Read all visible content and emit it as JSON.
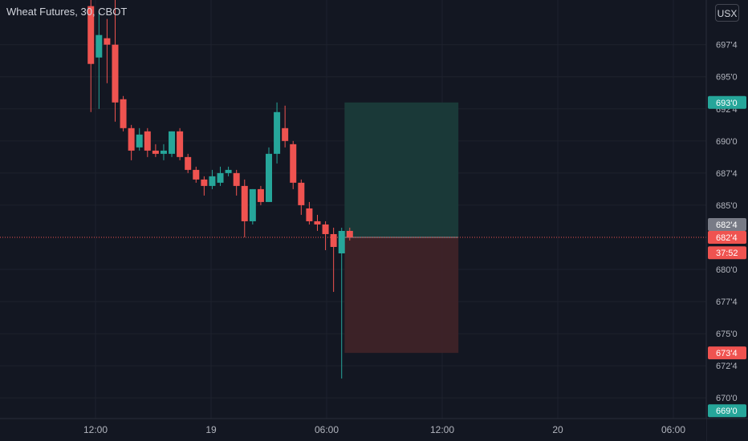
{
  "header": {
    "symbol_title": "Wheat Futures, 30, CBOT",
    "currency_label": "USX"
  },
  "colors": {
    "background": "#131722",
    "grid": "#1e222d",
    "text": "#b2b5be",
    "up": "#26a69a",
    "down": "#ef5350",
    "profit_zone": "#1a3b3a",
    "loss_zone": "#3e2328",
    "price_line": "#ef5350",
    "gray_tag": "#787b86"
  },
  "chart_data": {
    "type": "candlestick",
    "y_axis": {
      "tick_labels": [
        "697'4",
        "695'0",
        "692'4",
        "690'0",
        "687'4",
        "685'0",
        "680'0",
        "677'4",
        "675'0",
        "672'4",
        "670'0"
      ],
      "tick_values": [
        697.5,
        695.0,
        692.5,
        690.0,
        687.5,
        685.0,
        680.0,
        677.5,
        675.0,
        672.5,
        670.0
      ],
      "range": [
        668.8,
        701.0
      ]
    },
    "x_axis": {
      "tick_labels": [
        "12:00",
        "19",
        "06:00",
        "12:00",
        "20",
        "06:00"
      ],
      "bar_index": [
        0,
        10,
        20,
        30,
        40,
        50
      ]
    },
    "candles": [
      {
        "i": -0.4,
        "o": 700.5,
        "h": 701.5,
        "l": 692.25,
        "c": 696.0
      },
      {
        "i": 0.3,
        "o": 696.5,
        "h": 700.0,
        "l": 692.5,
        "c": 698.25
      },
      {
        "i": 1.0,
        "o": 698.0,
        "h": 699.5,
        "l": 694.5,
        "c": 697.5
      },
      {
        "i": 1.7,
        "o": 697.5,
        "h": 701.0,
        "l": 691.5,
        "c": 693.0
      },
      {
        "i": 2.4,
        "o": 693.25,
        "h": 693.5,
        "l": 690.75,
        "c": 691.0
      },
      {
        "i": 3.1,
        "o": 691.0,
        "h": 691.25,
        "l": 688.5,
        "c": 689.25
      },
      {
        "i": 3.8,
        "o": 689.5,
        "h": 691.0,
        "l": 689.25,
        "c": 690.5
      },
      {
        "i": 4.5,
        "o": 690.75,
        "h": 691.0,
        "l": 688.75,
        "c": 689.25
      },
      {
        "i": 5.2,
        "o": 689.25,
        "h": 689.75,
        "l": 688.75,
        "c": 689.0
      },
      {
        "i": 5.9,
        "o": 689.0,
        "h": 689.75,
        "l": 688.5,
        "c": 689.25
      },
      {
        "i": 6.6,
        "o": 689.0,
        "h": 690.75,
        "l": 688.75,
        "c": 690.75
      },
      {
        "i": 7.3,
        "o": 690.75,
        "h": 691.0,
        "l": 688.5,
        "c": 688.75
      },
      {
        "i": 8.0,
        "o": 688.75,
        "h": 689.0,
        "l": 687.5,
        "c": 687.75
      },
      {
        "i": 8.7,
        "o": 687.75,
        "h": 688.0,
        "l": 686.75,
        "c": 687.0
      },
      {
        "i": 9.4,
        "o": 687.0,
        "h": 687.25,
        "l": 685.75,
        "c": 686.5
      },
      {
        "i": 10.1,
        "o": 686.5,
        "h": 687.75,
        "l": 686.25,
        "c": 687.25
      },
      {
        "i": 10.8,
        "o": 686.75,
        "h": 688.0,
        "l": 686.5,
        "c": 687.5
      },
      {
        "i": 11.5,
        "o": 687.5,
        "h": 688.0,
        "l": 687.25,
        "c": 687.75
      },
      {
        "i": 12.2,
        "o": 687.5,
        "h": 687.75,
        "l": 685.75,
        "c": 686.5
      },
      {
        "i": 12.9,
        "o": 686.5,
        "h": 687.0,
        "l": 682.5,
        "c": 683.75
      },
      {
        "i": 13.6,
        "o": 683.75,
        "h": 686.25,
        "l": 683.5,
        "c": 686.25
      },
      {
        "i": 14.3,
        "o": 686.25,
        "h": 686.5,
        "l": 685.0,
        "c": 685.25
      },
      {
        "i": 15.0,
        "o": 685.25,
        "h": 689.5,
        "l": 685.25,
        "c": 689.0
      },
      {
        "i": 15.7,
        "o": 689.0,
        "h": 693.0,
        "l": 688.25,
        "c": 692.25
      },
      {
        "i": 16.4,
        "o": 691.0,
        "h": 692.75,
        "l": 689.5,
        "c": 690.0
      },
      {
        "i": 17.1,
        "o": 689.75,
        "h": 690.0,
        "l": 686.25,
        "c": 686.75
      },
      {
        "i": 17.8,
        "o": 686.75,
        "h": 687.0,
        "l": 684.25,
        "c": 685.0
      },
      {
        "i": 18.5,
        "o": 684.75,
        "h": 685.25,
        "l": 683.5,
        "c": 683.75
      },
      {
        "i": 19.2,
        "o": 683.75,
        "h": 684.25,
        "l": 683.0,
        "c": 683.5
      },
      {
        "i": 19.9,
        "o": 683.5,
        "h": 683.75,
        "l": 681.5,
        "c": 682.75
      },
      {
        "i": 20.6,
        "o": 682.75,
        "h": 683.25,
        "l": 678.25,
        "c": 681.75
      },
      {
        "i": 21.3,
        "o": 681.25,
        "h": 683.25,
        "l": 671.5,
        "c": 683.0
      },
      {
        "i": 22.0,
        "o": 683.0,
        "h": 683.25,
        "l": 682.25,
        "c": 682.5
      }
    ],
    "position_tool": {
      "bar_start": 21.55,
      "bar_end": 31.4,
      "entry": 682.5,
      "target": 693.0,
      "stop": 673.5
    },
    "price_tags": [
      {
        "label": "693'0",
        "value": 693.0,
        "style": "up"
      },
      {
        "label": "682'4",
        "value": 683.5,
        "style": "gray"
      },
      {
        "label": "682'4",
        "value": 682.5,
        "style": "down"
      },
      {
        "label": "37:52",
        "value": 681.3,
        "style": "down"
      },
      {
        "label": "673'4",
        "value": 673.5,
        "style": "down"
      },
      {
        "label": "669'0",
        "value": 669.0,
        "style": "up"
      }
    ],
    "current_price": 682.5
  }
}
